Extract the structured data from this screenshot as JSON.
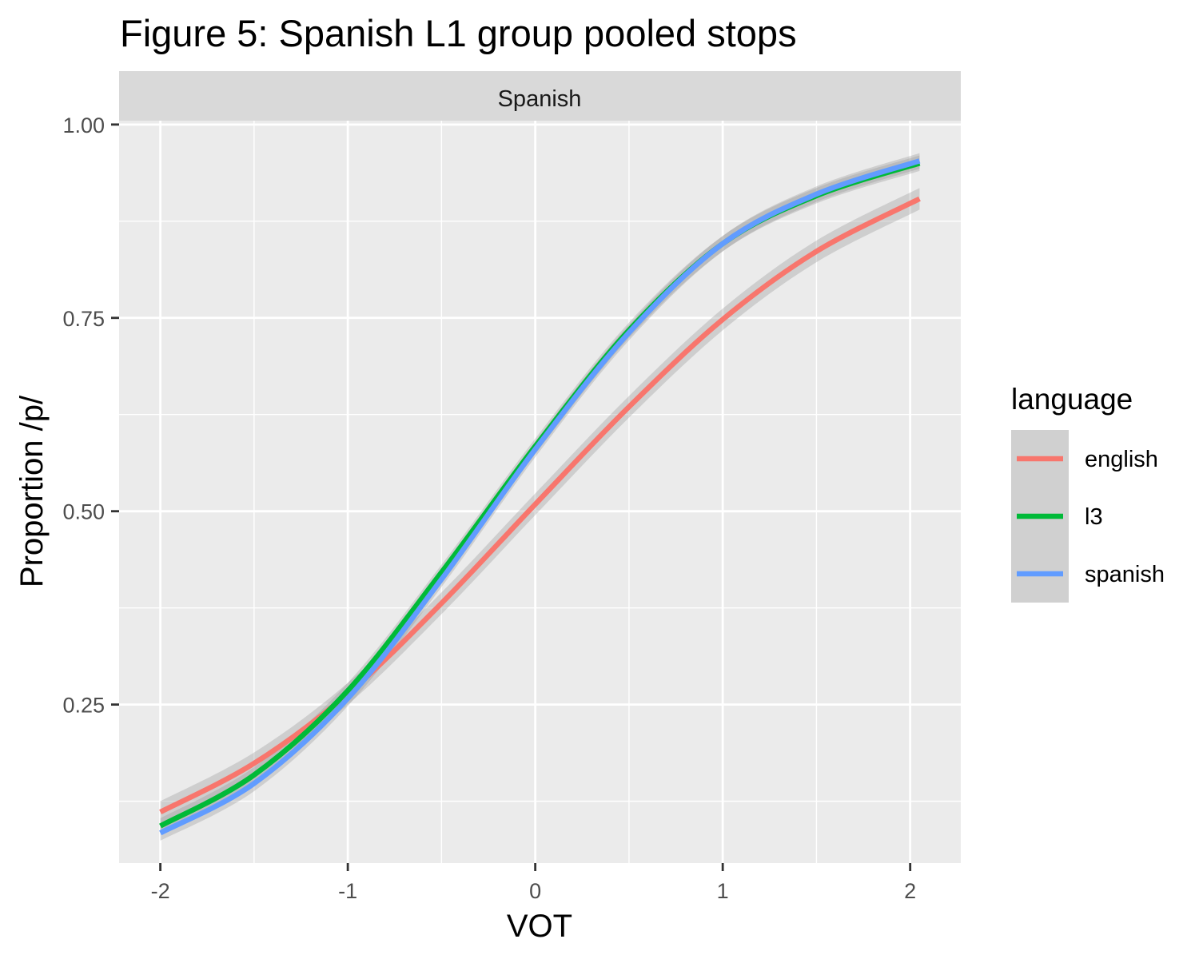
{
  "chart_data": {
    "type": "line",
    "title": "Figure 5: Spanish L1 group pooled stops",
    "facet_label": "Spanish",
    "xlabel": "VOT",
    "ylabel": "Proportion /p/",
    "xlim": [
      -2.22,
      2.27
    ],
    "ylim": [
      0.045,
      1.005
    ],
    "x_ticks": [
      -2,
      -1,
      0,
      1,
      2
    ],
    "x_tick_labels": [
      "-2",
      "-1",
      "0",
      "1",
      "2"
    ],
    "y_ticks": [
      0.25,
      0.5,
      0.75,
      1.0
    ],
    "y_tick_labels": [
      "0.25",
      "0.50",
      "0.75",
      "1.00"
    ],
    "grid": true,
    "confidence_band": true,
    "legend": {
      "title": "language",
      "position": "right",
      "entries": [
        "english",
        "l3",
        "spanish"
      ]
    },
    "x": [
      -2.0,
      -1.5,
      -1.0,
      -0.5,
      0.0,
      0.5,
      1.0,
      1.5,
      2.05
    ],
    "series": [
      {
        "name": "english",
        "color": "#F8766D",
        "values": [
          0.111,
          0.174,
          0.264,
          0.381,
          0.509,
          0.635,
          0.748,
          0.836,
          0.904
        ],
        "band_halfwidth": 0.014
      },
      {
        "name": "l3",
        "color": "#00BA38",
        "values": [
          0.093,
          0.159,
          0.268,
          0.421,
          0.584,
          0.734,
          0.846,
          0.908,
          0.95
        ],
        "band_halfwidth": 0.01
      },
      {
        "name": "spanish",
        "color": "#619CFF",
        "values": [
          0.084,
          0.148,
          0.258,
          0.412,
          0.58,
          0.731,
          0.846,
          0.91,
          0.953
        ],
        "band_halfwidth": 0.01
      }
    ]
  }
}
